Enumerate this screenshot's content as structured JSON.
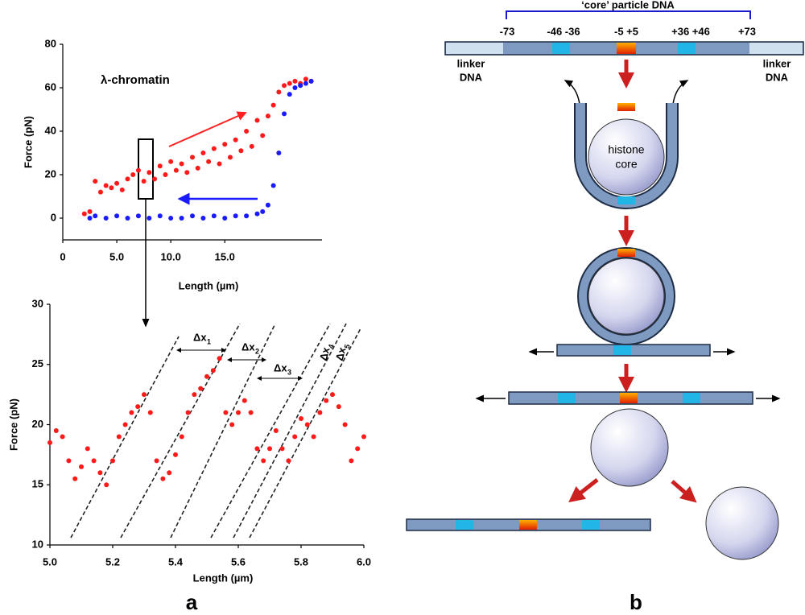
{
  "chart_data": [
    {
      "type": "scatter",
      "annotation": "λ-chromatin",
      "xlabel": "Length (µm)",
      "ylabel": "Force  (pN)",
      "xlim": [
        0,
        24
      ],
      "ylim": [
        -10,
        80
      ],
      "xticks": [
        0,
        {
          "value": 5,
          "label": "5.0"
        },
        {
          "value": 10,
          "label": "10.0"
        },
        {
          "value": 15,
          "label": "15.0"
        }
      ],
      "yticks": [
        0,
        20,
        40,
        60,
        80
      ],
      "series": [
        {
          "color": "#ff1a1a",
          "x": [
            2.0,
            2.5,
            3.0,
            3.5,
            4.0,
            4.5,
            5.0,
            5.5,
            6.0,
            6.5,
            7.0,
            7.5,
            8.0,
            8.5,
            9.0,
            9.5,
            10.0,
            10.5,
            11.0,
            11.5,
            12.0,
            12.5,
            13.0,
            13.5,
            14.0,
            14.5,
            15.0,
            15.5,
            16.0,
            16.5,
            17.0,
            17.5,
            18.0,
            18.5,
            19.0,
            19.5,
            20.0,
            20.5,
            21.0,
            21.5,
            22.0,
            22.5,
            23.0
          ],
          "values": [
            2,
            3,
            17,
            12,
            15,
            14,
            16,
            13,
            18,
            20,
            22,
            17,
            21,
            18,
            24,
            20,
            26,
            22,
            25,
            21,
            28,
            23,
            30,
            26,
            32,
            25,
            34,
            28,
            36,
            31,
            40,
            33,
            45,
            38,
            47,
            52,
            58,
            61,
            62,
            63,
            62,
            64,
            63
          ]
        },
        {
          "color": "#1a1aff",
          "x": [
            2.5,
            3,
            4,
            5,
            6,
            7,
            8,
            9,
            10,
            11,
            12,
            13,
            14,
            15,
            16,
            17,
            18,
            18.5,
            19,
            19.5,
            20,
            20.5,
            21,
            21.5,
            22,
            22.5,
            23
          ],
          "values": [
            0,
            1,
            0,
            1,
            0,
            1,
            0,
            1,
            0,
            0,
            1,
            0,
            1,
            0,
            1,
            1,
            2,
            3,
            6,
            15,
            30,
            48,
            57,
            60,
            61,
            62,
            63
          ]
        }
      ]
    },
    {
      "type": "scatter",
      "xlabel": "Length (µm)",
      "ylabel": "Force  (pN)",
      "xlim": [
        5,
        6
      ],
      "ylim": [
        10,
        30
      ],
      "xticks": [
        {
          "value": 5,
          "label": "5.0"
        },
        5.2,
        5.4,
        5.6,
        5.8,
        {
          "value": 6,
          "label": "6.0"
        }
      ],
      "yticks": [
        10,
        15,
        20,
        25,
        30
      ],
      "annotations": [
        {
          "text": "Δx",
          "subscript": "1"
        },
        {
          "text": "Δx",
          "subscript": "2"
        },
        {
          "text": "Δx",
          "subscript": "3"
        },
        {
          "text": "Δx",
          "subscript": "4"
        },
        {
          "text": "Δx",
          "subscript": "5"
        }
      ],
      "series": [
        {
          "color": "#ff1a1a",
          "x": [
            5.0,
            5.02,
            5.04,
            5.06,
            5.08,
            5.1,
            5.12,
            5.14,
            5.16,
            5.18,
            5.2,
            5.22,
            5.24,
            5.26,
            5.28,
            5.3,
            5.32,
            5.34,
            5.36,
            5.38,
            5.4,
            5.42,
            5.44,
            5.46,
            5.48,
            5.5,
            5.52,
            5.54,
            5.56,
            5.58,
            5.6,
            5.62,
            5.64,
            5.66,
            5.68,
            5.7,
            5.72,
            5.74,
            5.76,
            5.78,
            5.8,
            5.82,
            5.84,
            5.86,
            5.88,
            5.9,
            5.92,
            5.94,
            5.96,
            5.98,
            6.0
          ],
          "values": [
            18.5,
            19.5,
            19,
            17,
            15.5,
            16.5,
            18,
            17,
            16,
            15,
            17,
            19,
            20,
            21,
            21.5,
            22.5,
            21,
            17,
            15.5,
            16,
            17.5,
            19,
            21,
            22.5,
            23,
            24,
            24.5,
            25.5,
            21,
            20,
            21,
            22,
            21,
            18,
            17,
            18,
            19.5,
            18,
            17,
            19,
            20.5,
            20,
            19,
            21,
            22,
            22.5,
            21.5,
            20,
            17,
            18,
            19
          ]
        }
      ]
    }
  ],
  "panel_labels": [
    "a",
    "b"
  ],
  "diagram": {
    "title": "‘core’ particle DNA",
    "positions": [
      "-73",
      "-46 -36",
      "-5 +5",
      "+36 +46",
      "+73"
    ],
    "linker_left": [
      "linker",
      "DNA"
    ],
    "linker_right": [
      "linker",
      "DNA"
    ],
    "histone_label": [
      "histone",
      "core"
    ]
  }
}
